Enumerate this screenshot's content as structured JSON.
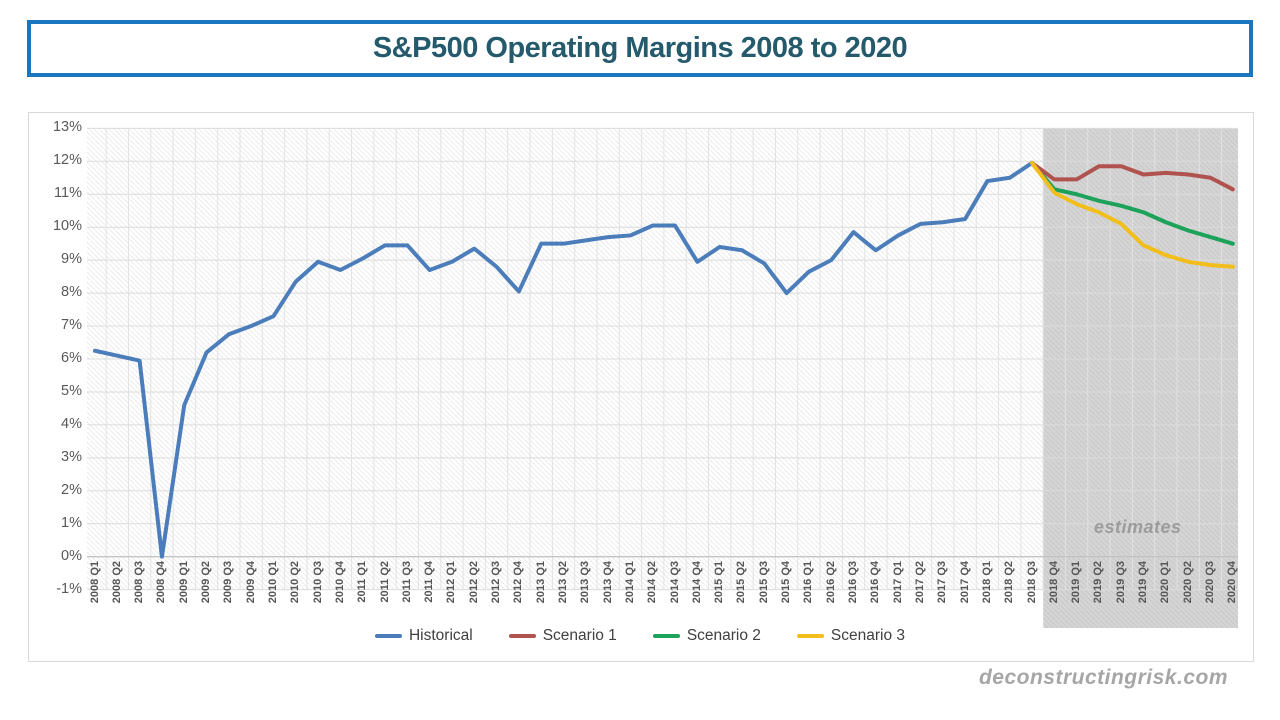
{
  "header": {
    "title": "S&P500 Operating Margins 2008 to 2020"
  },
  "watermark": "deconstructingrisk.com",
  "chart_data": {
    "type": "line",
    "title": "S&P500 Operating Margins 2008 to 2020",
    "categories": [
      "2008 Q1",
      "2008 Q2",
      "2008 Q3",
      "2008 Q4",
      "2009 Q1",
      "2009 Q2",
      "2009 Q3",
      "2009 Q4",
      "2010 Q1",
      "2010 Q2",
      "2010 Q3",
      "2010 Q4",
      "2011 Q1",
      "2011 Q2",
      "2011 Q3",
      "2011 Q4",
      "2012 Q1",
      "2012 Q2",
      "2012 Q3",
      "2012 Q4",
      "2013 Q1",
      "2013 Q2",
      "2013 Q3",
      "2013 Q4",
      "2014 Q1",
      "2014 Q2",
      "2014 Q3",
      "2014 Q4",
      "2015 Q1",
      "2015 Q2",
      "2015 Q3",
      "2015 Q4",
      "2016 Q1",
      "2016 Q2",
      "2016 Q3",
      "2016 Q4",
      "2017 Q1",
      "2017 Q2",
      "2017 Q3",
      "2017 Q4",
      "2018 Q1",
      "2018 Q2",
      "2018 Q3",
      "2018 Q4",
      "2019 Q1",
      "2019 Q2",
      "2019 Q3",
      "2019 Q4",
      "2020 Q1",
      "2020 Q2",
      "2020 Q3",
      "2020 Q4"
    ],
    "y_axis": {
      "min": -1,
      "max": 13,
      "step": 1,
      "tick_suffix": "%"
    },
    "grid": true,
    "legend_position": "bottom",
    "series": [
      {
        "name": "Historical",
        "color": "#4B7DBB",
        "start_index": 0,
        "values": [
          6.25,
          6.1,
          5.95,
          0.0,
          4.6,
          6.2,
          6.75,
          7.0,
          7.3,
          8.35,
          8.95,
          8.7,
          9.05,
          9.45,
          9.45,
          8.7,
          8.95,
          9.35,
          8.8,
          8.05,
          9.5,
          9.5,
          9.6,
          9.7,
          9.75,
          10.05,
          10.05,
          8.95,
          9.4,
          9.3,
          8.9,
          8.0,
          8.65,
          9.0,
          9.85,
          9.3,
          9.75,
          10.1,
          10.15,
          10.25,
          11.4,
          11.5,
          11.95
        ]
      },
      {
        "name": "Scenario 1",
        "color": "#B0524E",
        "start_index": 42,
        "values": [
          11.95,
          11.45,
          11.45,
          11.85,
          11.85,
          11.6,
          11.65,
          11.6,
          11.5,
          11.15
        ]
      },
      {
        "name": "Scenario 2",
        "color": "#1DA25A",
        "start_index": 42,
        "values": [
          11.95,
          11.15,
          11.0,
          10.8,
          10.65,
          10.45,
          10.15,
          9.9,
          9.7,
          9.5
        ]
      },
      {
        "name": "Scenario 3",
        "color": "#F1BE1B",
        "start_index": 42,
        "values": [
          11.95,
          11.05,
          10.7,
          10.45,
          10.1,
          9.45,
          9.15,
          8.95,
          8.85,
          8.8
        ]
      }
    ],
    "estimates_region": {
      "start_category": "2018 Q4",
      "end_category": "2020 Q4",
      "label": "estimates",
      "fill": "#D5D5D5"
    }
  }
}
